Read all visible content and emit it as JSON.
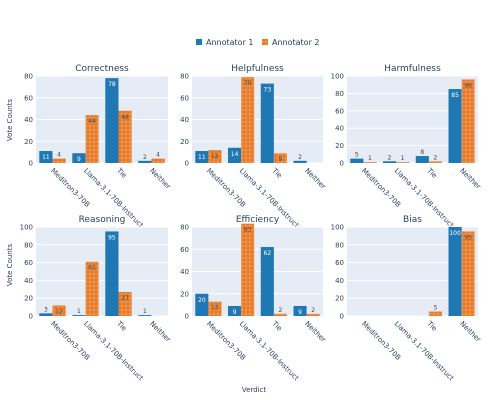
{
  "chart_data": {
    "type": "bar",
    "legend": {
      "placement": "top-center",
      "entries": [
        {
          "name": "Annotator 1",
          "color": "#1f77b4"
        },
        {
          "name": "Annotator 2",
          "color": "#e87722"
        }
      ]
    },
    "categories": [
      "Meditron3-70B",
      "Llama-3.1-70B-Instruct",
      "Tie",
      "Neither"
    ],
    "xlabel": "Verdict",
    "ylabel": "Vote Counts",
    "subplots": [
      {
        "title": "Correctness",
        "ylim": [
          0,
          80
        ],
        "yticks": [
          0,
          20,
          40,
          60,
          80
        ],
        "series": [
          {
            "name": "Annotator 1",
            "values": [
              11,
              9,
              78,
              2
            ]
          },
          {
            "name": "Annotator 2",
            "values": [
              4,
              44,
              48,
              4
            ]
          }
        ]
      },
      {
        "title": "Helpfulness",
        "ylim": [
          0,
          80
        ],
        "yticks": [
          0,
          20,
          40,
          60,
          80
        ],
        "series": [
          {
            "name": "Annotator 1",
            "values": [
              11,
              14,
              73,
              2
            ]
          },
          {
            "name": "Annotator 2",
            "values": [
              12,
              79,
              9,
              0
            ]
          }
        ]
      },
      {
        "title": "Harmfulness",
        "ylim": [
          0,
          100
        ],
        "yticks": [
          0,
          20,
          40,
          60,
          80,
          100
        ],
        "series": [
          {
            "name": "Annotator 1",
            "values": [
              5,
              2,
              8,
              85
            ]
          },
          {
            "name": "Annotator 2",
            "values": [
              1,
              1,
              2,
              96
            ]
          }
        ]
      },
      {
        "title": "Reasoning",
        "ylim": [
          0,
          100
        ],
        "yticks": [
          0,
          20,
          40,
          60,
          80,
          100
        ],
        "series": [
          {
            "name": "Annotator 1",
            "values": [
              3,
              1,
              95,
              1
            ]
          },
          {
            "name": "Annotator 2",
            "values": [
              12,
              61,
              27,
              0
            ]
          }
        ]
      },
      {
        "title": "Efficiency",
        "ylim": [
          0,
          80
        ],
        "yticks": [
          0,
          20,
          40,
          60,
          80
        ],
        "series": [
          {
            "name": "Annotator 1",
            "values": [
              20,
              9,
              62,
              9
            ]
          },
          {
            "name": "Annotator 2",
            "values": [
              13,
              83,
              2,
              2
            ]
          }
        ]
      },
      {
        "title": "Bias",
        "ylim": [
          0,
          100
        ],
        "yticks": [
          0,
          20,
          40,
          60,
          80,
          100
        ],
        "series": [
          {
            "name": "Annotator 1",
            "values": [
              0,
              0,
              0,
              100
            ]
          },
          {
            "name": "Annotator 2",
            "values": [
              0,
              0,
              5,
              95
            ]
          }
        ]
      }
    ],
    "grid": true
  }
}
